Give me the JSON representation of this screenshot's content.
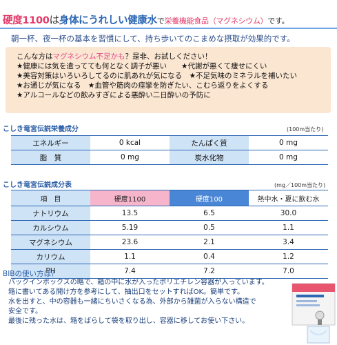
{
  "header": {
    "headline_part1": "硬度1100",
    "headline_part2": "は",
    "headline_part3": "身体にうれしい健康水",
    "headline_part4": "で",
    "headline_part5": "栄養機能食品（マグネシウム）",
    "headline_part6": "です。",
    "subline": "朝一杯、夜一杯の基本を習慣にして、持ち歩いてのこまめな摂取が効果的です。"
  },
  "recommend": {
    "intro_a": "こんな方は",
    "intro_pink": "マグネシウム不足かも",
    "intro_b": "？是非、お試しください！",
    "lines": [
      "★健康には気を遣ってても何となく調子が悪い　　★代謝が悪くて痩せにくい",
      "★美容対策はいろいろしてるのに肌あれが気になる　★不足気味のミネラルを補いたい",
      "★お通じが気になる　★血管や筋肉の痙攣を防ぎたい、こむら返りをよくする",
      "★アルコールなどの飲みすぎによる悪酔い二日酔いの予防に"
    ]
  },
  "nutrition": {
    "title": "こしき竜宮伝説栄養成分",
    "unit": "(100m当たり)",
    "rows": [
      {
        "l1": "エネルギー",
        "v1": "0 kcal",
        "l2": "たんぱく質",
        "v2": "0 mg"
      },
      {
        "l1": "脂　質",
        "v1": "0 mg",
        "l2": "炭水化物",
        "v2": "0 mg"
      }
    ]
  },
  "components": {
    "title": "こしき竜宮伝説成分表",
    "unit": "(mg／100m当たり)",
    "headers": [
      "項　目",
      "硬度1100",
      "硬度100",
      "熱中水・夏に飲む水"
    ],
    "rows": [
      {
        "item": "ナトリウム",
        "a": "13.5",
        "b": "6.5",
        "c": "30.0"
      },
      {
        "item": "カルシウム",
        "a": "5.19",
        "b": "0.5",
        "c": "1.1"
      },
      {
        "item": "マグネシウム",
        "a": "23.6",
        "b": "2.1",
        "c": "3.4"
      },
      {
        "item": "カリウム",
        "a": "1.1",
        "b": "0.4",
        "c": "1.2"
      },
      {
        "item": "PH",
        "a": "7.4",
        "b": "7.2",
        "c": "7.0"
      }
    ]
  },
  "bib": {
    "title": "BIBの使い方は？",
    "lines": [
      "バックインボックスの略で、箱の中に水が入ったポリエチレン容器が入っています。",
      "箱に書いてある開け方を参考にして、抽出口をセットすればOK。簡単です。",
      "水を出すと、中の容器も一緒にちいさくなる為、外部から雑菌が入らない構造で",
      "安全です。",
      "最後に残った水は、箱をばらして袋を取り出し、容器に移してお使い下さい。"
    ]
  },
  "colors": {
    "accent_pink": "#e23a6a",
    "accent_blue": "#2d67b4",
    "peach": "#fbe6d2",
    "light_blue": "#cfe3f6"
  }
}
